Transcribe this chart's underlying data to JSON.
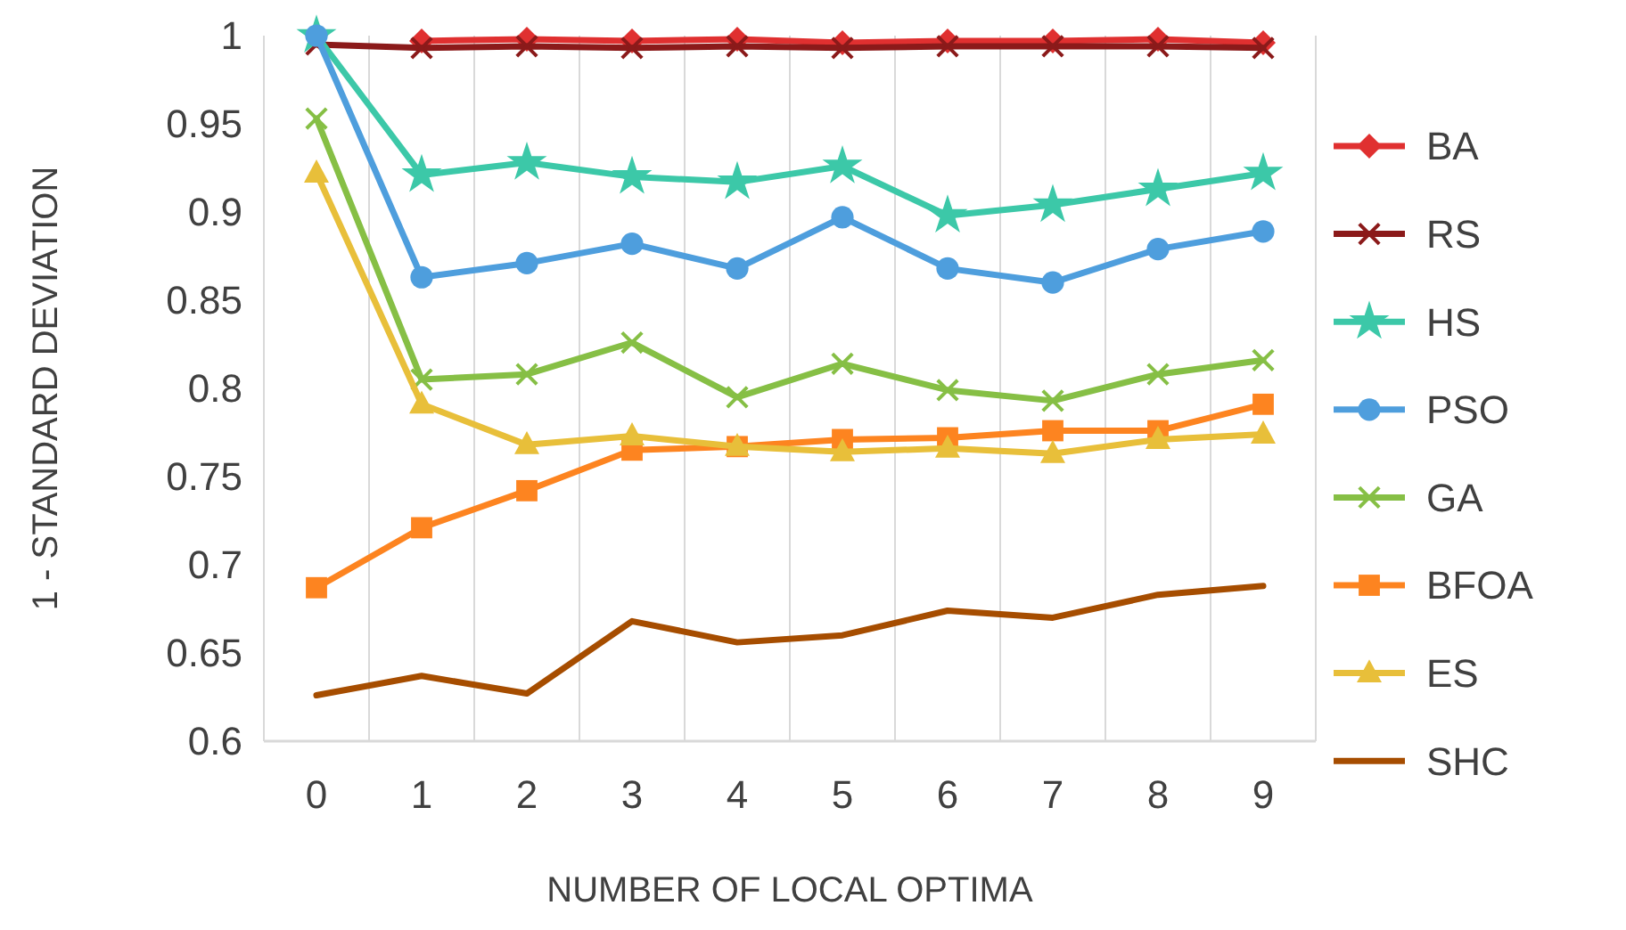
{
  "chart_data": {
    "type": "line",
    "xlabel": "NUMBER OF LOCAL OPTIMA",
    "ylabel": "1 - STANDARD DEVIATION",
    "categories": [
      "0",
      "1",
      "2",
      "3",
      "4",
      "5",
      "6",
      "7",
      "8",
      "9"
    ],
    "ylim": [
      0.6,
      1
    ],
    "yticks": [
      0.6,
      0.65,
      0.7,
      0.75,
      0.8,
      0.85,
      0.9,
      0.95,
      1
    ],
    "grid": "x",
    "legend": "right",
    "line_style": "solid",
    "series": [
      {
        "name": "BA",
        "color": "#e03030",
        "marker": "diamond",
        "values": [
          null,
          0.997,
          0.998,
          0.997,
          0.998,
          0.996,
          0.997,
          0.997,
          0.998,
          0.996
        ]
      },
      {
        "name": "RS",
        "color": "#8b1a1a",
        "marker": "cross",
        "values": [
          0.995,
          0.993,
          0.994,
          0.993,
          0.994,
          0.993,
          0.994,
          0.994,
          0.994,
          0.993
        ]
      },
      {
        "name": "HS",
        "color": "#3cc8a8",
        "marker": "star",
        "values": [
          1.0,
          0.921,
          0.928,
          0.92,
          0.917,
          0.926,
          0.898,
          0.904,
          0.913,
          0.922
        ]
      },
      {
        "name": "PSO",
        "color": "#4e9edd",
        "marker": "circle",
        "values": [
          1.0,
          0.863,
          0.871,
          0.882,
          0.868,
          0.897,
          0.868,
          0.86,
          0.879,
          0.889
        ]
      },
      {
        "name": "GA",
        "color": "#86bf45",
        "marker": "cross",
        "values": [
          0.953,
          0.805,
          0.808,
          0.826,
          0.795,
          0.814,
          0.799,
          0.793,
          0.808,
          0.816
        ]
      },
      {
        "name": "BFOA",
        "color": "#fd8420",
        "marker": "square",
        "values": [
          0.687,
          0.721,
          0.742,
          0.765,
          0.767,
          0.771,
          0.772,
          0.776,
          0.776,
          0.791
        ]
      },
      {
        "name": "ES",
        "color": "#e8bf3a",
        "marker": "triangle",
        "values": [
          0.922,
          0.791,
          0.768,
          0.773,
          0.767,
          0.764,
          0.766,
          0.763,
          0.771,
          0.774
        ]
      },
      {
        "name": "SHC",
        "color": "#a64d00",
        "marker": "none",
        "values": [
          0.626,
          0.637,
          0.627,
          0.668,
          0.656,
          0.66,
          0.674,
          0.67,
          0.683,
          0.688
        ]
      }
    ]
  }
}
